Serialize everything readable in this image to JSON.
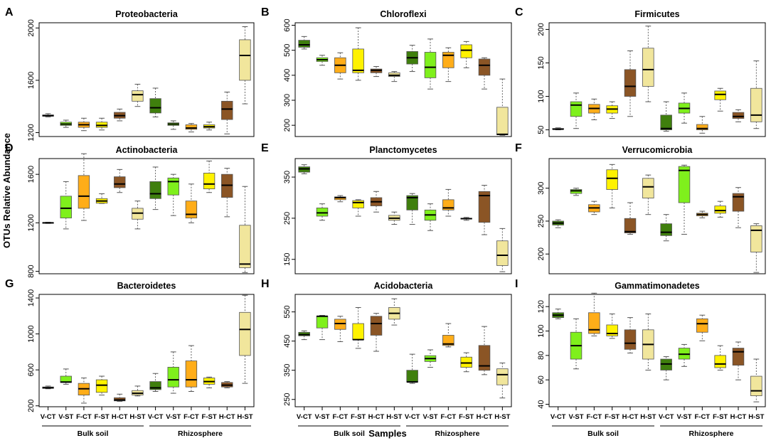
{
  "figure": {
    "y_axis_title": "OTUs Relative Abundance",
    "x_axis_title": "Samples",
    "group_labels": [
      "Bulk soil",
      "Rhizosphere"
    ],
    "sample_labels": [
      "V-CT",
      "V-ST",
      "F-CT",
      "F-ST",
      "H-CT",
      "H-ST",
      "V-CT",
      "V-ST",
      "F-CT",
      "F-ST",
      "H-CT",
      "H-ST"
    ],
    "colors": [
      "#3f7f0d",
      "#7ff01c",
      "#ffad19",
      "#fff200",
      "#8b5525",
      "#f1e69c",
      "#3f7f0d",
      "#7ff01c",
      "#ffad19",
      "#fff200",
      "#8b5525",
      "#f1e69c"
    ]
  },
  "chart_data": [
    {
      "letter": "A",
      "type": "boxplot",
      "title": "Proteobacteria",
      "ylim": [
        1170,
        2040
      ],
      "yticks": [
        1200,
        1600,
        2000
      ],
      "categories": [
        "V-CT",
        "V-ST",
        "F-CT",
        "F-ST",
        "H-CT",
        "H-ST",
        "V-CT",
        "V-ST",
        "F-CT",
        "F-ST",
        "H-CT",
        "H-ST"
      ],
      "boxes": [
        [
          1320,
          1325,
          1330,
          1335,
          1345
        ],
        [
          1240,
          1255,
          1265,
          1280,
          1295
        ],
        [
          1215,
          1240,
          1260,
          1280,
          1310
        ],
        [
          1220,
          1240,
          1255,
          1280,
          1310
        ],
        [
          1290,
          1310,
          1330,
          1355,
          1380
        ],
        [
          1400,
          1440,
          1490,
          1520,
          1570
        ],
        [
          1320,
          1350,
          1390,
          1460,
          1540
        ],
        [
          1225,
          1255,
          1265,
          1275,
          1290
        ],
        [
          1205,
          1225,
          1235,
          1260,
          1270
        ],
        [
          1220,
          1235,
          1245,
          1260,
          1280
        ],
        [
          1190,
          1300,
          1380,
          1440,
          1510
        ],
        [
          1420,
          1600,
          1790,
          1910,
          2010
        ]
      ]
    },
    {
      "letter": "B",
      "type": "boxplot",
      "title": "Chloroflexi",
      "ylim": [
        155,
        610
      ],
      "yticks": [
        200,
        300,
        400,
        500,
        600
      ],
      "categories": [
        "V-CT",
        "V-ST",
        "F-CT",
        "F-ST",
        "H-CT",
        "H-ST",
        "V-CT",
        "V-ST",
        "F-CT",
        "F-ST",
        "H-CT",
        "H-ST"
      ],
      "boxes": [
        [
          505,
          512,
          522,
          540,
          555
        ],
        [
          440,
          455,
          462,
          470,
          480
        ],
        [
          385,
          410,
          440,
          470,
          490
        ],
        [
          380,
          410,
          420,
          505,
          590
        ],
        [
          395,
          410,
          420,
          425,
          435
        ],
        [
          375,
          395,
          400,
          410,
          415
        ],
        [
          415,
          445,
          470,
          495,
          520
        ],
        [
          345,
          390,
          432,
          492,
          545
        ],
        [
          375,
          430,
          480,
          492,
          510
        ],
        [
          430,
          470,
          500,
          522,
          535
        ],
        [
          345,
          400,
          440,
          465,
          470
        ],
        [
          160,
          162,
          164,
          272,
          385
        ]
      ]
    },
    {
      "letter": "C",
      "type": "boxplot",
      "title": "Firmicutes",
      "ylim": [
        40,
        210
      ],
      "yticks": [
        50,
        100,
        150,
        200
      ],
      "categories": [
        "V-CT",
        "V-ST",
        "F-CT",
        "F-ST",
        "H-CT",
        "H-ST",
        "V-CT",
        "V-ST",
        "F-CT",
        "F-ST",
        "H-CT",
        "H-ST"
      ],
      "boxes": [
        [
          50,
          51,
          51,
          52,
          53
        ],
        [
          52,
          70,
          87,
          92,
          105
        ],
        [
          65,
          75,
          82,
          88,
          96
        ],
        [
          67,
          75,
          81,
          86,
          92
        ],
        [
          70,
          100,
          115,
          140,
          168
        ],
        [
          92,
          115,
          140,
          172,
          205
        ],
        [
          48,
          50,
          52,
          72,
          92
        ],
        [
          60,
          75,
          82,
          90,
          105
        ],
        [
          45,
          50,
          52,
          58,
          70
        ],
        [
          78,
          95,
          103,
          108,
          112
        ],
        [
          62,
          67,
          70,
          76,
          80
        ],
        [
          52,
          62,
          72,
          112,
          153
        ]
      ]
    },
    {
      "letter": "D",
      "type": "boxplot",
      "title": "Actinobacteria",
      "ylim": [
        780,
        1730
      ],
      "yticks": [
        800,
        1200,
        1600
      ],
      "categories": [
        "V-CT",
        "V-ST",
        "F-CT",
        "F-ST",
        "H-CT",
        "H-ST",
        "V-CT",
        "V-ST",
        "F-CT",
        "F-ST",
        "H-CT",
        "H-ST"
      ],
      "boxes": [
        [
          1195,
          1198,
          1200,
          1202,
          1205
        ],
        [
          1150,
          1240,
          1320,
          1420,
          1540
        ],
        [
          1220,
          1320,
          1420,
          1590,
          1770
        ],
        [
          1360,
          1362,
          1380,
          1400,
          1440
        ],
        [
          1450,
          1490,
          1520,
          1580,
          1640
        ],
        [
          1150,
          1230,
          1280,
          1320,
          1380
        ],
        [
          1310,
          1400,
          1440,
          1540,
          1660
        ],
        [
          1260,
          1430,
          1540,
          1570,
          1600
        ],
        [
          1200,
          1240,
          1270,
          1380,
          1520
        ],
        [
          1450,
          1480,
          1520,
          1610,
          1710
        ],
        [
          1250,
          1410,
          1510,
          1600,
          1650
        ],
        [
          790,
          830,
          860,
          1180,
          1500
        ]
      ]
    },
    {
      "letter": "E",
      "type": "boxplot",
      "title": "Planctomycetes",
      "ylim": [
        115,
        395
      ],
      "yticks": [
        150,
        250,
        350
      ],
      "categories": [
        "V-CT",
        "V-ST",
        "F-CT",
        "F-ST",
        "H-CT",
        "H-ST",
        "V-CT",
        "V-ST",
        "F-CT",
        "F-ST",
        "H-CT",
        "H-ST"
      ],
      "boxes": [
        [
          358,
          362,
          370,
          375,
          380
        ],
        [
          245,
          255,
          263,
          275,
          285
        ],
        [
          290,
          295,
          300,
          302,
          305
        ],
        [
          255,
          275,
          288,
          293,
          295
        ],
        [
          265,
          280,
          290,
          300,
          315
        ],
        [
          235,
          245,
          250,
          257,
          265
        ],
        [
          235,
          270,
          300,
          305,
          310
        ],
        [
          220,
          245,
          258,
          270,
          285
        ],
        [
          255,
          270,
          275,
          295,
          320
        ],
        [
          245,
          248,
          249,
          250,
          252
        ],
        [
          210,
          240,
          305,
          315,
          330
        ],
        [
          120,
          135,
          160,
          195,
          225
        ]
      ]
    },
    {
      "letter": "F",
      "type": "boxplot",
      "title": "Verrucomicrobia",
      "ylim": [
        170,
        345
      ],
      "yticks": [
        200,
        250,
        300
      ],
      "categories": [
        "V-CT",
        "V-ST",
        "F-CT",
        "F-ST",
        "H-CT",
        "H-ST",
        "V-CT",
        "V-ST",
        "F-CT",
        "F-ST",
        "H-CT",
        "H-ST"
      ],
      "boxes": [
        [
          240,
          244,
          247,
          250,
          252
        ],
        [
          289,
          292,
          296,
          298,
          300
        ],
        [
          260,
          264,
          270,
          275,
          280
        ],
        [
          270,
          298,
          315,
          328,
          336
        ],
        [
          230,
          232,
          234,
          254,
          278
        ],
        [
          260,
          285,
          302,
          315,
          320
        ],
        [
          220,
          228,
          233,
          246,
          260
        ],
        [
          230,
          278,
          327,
          333,
          335
        ],
        [
          255,
          258,
          260,
          262,
          265
        ],
        [
          256,
          262,
          266,
          273,
          280
        ],
        [
          240,
          265,
          287,
          292,
          301
        ],
        [
          172,
          203,
          236,
          243,
          246
        ]
      ]
    },
    {
      "letter": "G",
      "type": "boxplot",
      "title": "Bacteroidetes",
      "ylim": [
        190,
        1440
      ],
      "yticks": [
        200,
        600,
        1000,
        1400
      ],
      "categories": [
        "V-CT",
        "V-ST",
        "F-CT",
        "F-ST",
        "H-CT",
        "H-ST",
        "V-CT",
        "V-ST",
        "F-CT",
        "F-ST",
        "H-CT",
        "H-ST"
      ],
      "boxes": [
        [
          390,
          395,
          400,
          410,
          420
        ],
        [
          440,
          460,
          465,
          530,
          610
        ],
        [
          230,
          320,
          390,
          450,
          510
        ],
        [
          320,
          350,
          430,
          490,
          530
        ],
        [
          250,
          255,
          265,
          290,
          330
        ],
        [
          310,
          320,
          340,
          370,
          420
        ],
        [
          360,
          380,
          400,
          470,
          560
        ],
        [
          340,
          410,
          490,
          630,
          800
        ],
        [
          360,
          410,
          490,
          700,
          870
        ],
        [
          400,
          440,
          470,
          510,
          520
        ],
        [
          400,
          410,
          430,
          460,
          470
        ],
        [
          450,
          760,
          1050,
          1240,
          1430
        ]
      ]
    },
    {
      "letter": "H",
      "type": "boxplot",
      "title": "Acidobacteria",
      "ylim": [
        225,
        610
      ],
      "yticks": [
        250,
        350,
        450,
        550
      ],
      "categories": [
        "V-CT",
        "V-ST",
        "F-CT",
        "F-ST",
        "H-CT",
        "H-ST",
        "V-CT",
        "V-ST",
        "F-CT",
        "F-ST",
        "H-CT",
        "H-ST"
      ],
      "boxes": [
        [
          455,
          468,
          472,
          480,
          485
        ],
        [
          455,
          495,
          535,
          535,
          538
        ],
        [
          448,
          490,
          510,
          525,
          535
        ],
        [
          425,
          455,
          455,
          510,
          565
        ],
        [
          415,
          470,
          510,
          535,
          545
        ],
        [
          505,
          525,
          545,
          565,
          595
        ],
        [
          305,
          310,
          310,
          350,
          405
        ],
        [
          360,
          380,
          390,
          400,
          420
        ],
        [
          430,
          435,
          440,
          470,
          510
        ],
        [
          345,
          360,
          375,
          395,
          410
        ],
        [
          335,
          350,
          365,
          435,
          500
        ],
        [
          255,
          300,
          335,
          355,
          375
        ]
      ]
    },
    {
      "letter": "I",
      "type": "boxplot",
      "title": "Gammatimonadetes",
      "ylim": [
        38,
        130
      ],
      "yticks": [
        40,
        60,
        80,
        100,
        120
      ],
      "categories": [
        "V-CT",
        "V-ST",
        "F-CT",
        "F-ST",
        "H-CT",
        "H-ST",
        "V-CT",
        "V-ST",
        "F-CT",
        "F-ST",
        "H-CT",
        "H-ST"
      ],
      "boxes": [
        [
          110,
          111,
          113,
          115,
          118
        ],
        [
          69,
          77,
          88,
          99,
          110
        ],
        [
          96,
          98,
          101,
          115,
          131
        ],
        [
          94,
          96,
          98,
          105,
          114
        ],
        [
          82,
          85,
          90,
          101,
          111
        ],
        [
          68,
          77,
          89,
          101,
          114
        ],
        [
          60,
          68,
          73,
          77,
          79
        ],
        [
          71,
          77,
          81,
          86,
          89
        ],
        [
          92,
          99,
          106,
          110,
          113
        ],
        [
          68,
          70,
          73,
          80,
          88
        ],
        [
          60,
          72,
          83,
          86,
          91
        ],
        [
          42,
          47,
          51,
          63,
          77
        ]
      ]
    }
  ]
}
